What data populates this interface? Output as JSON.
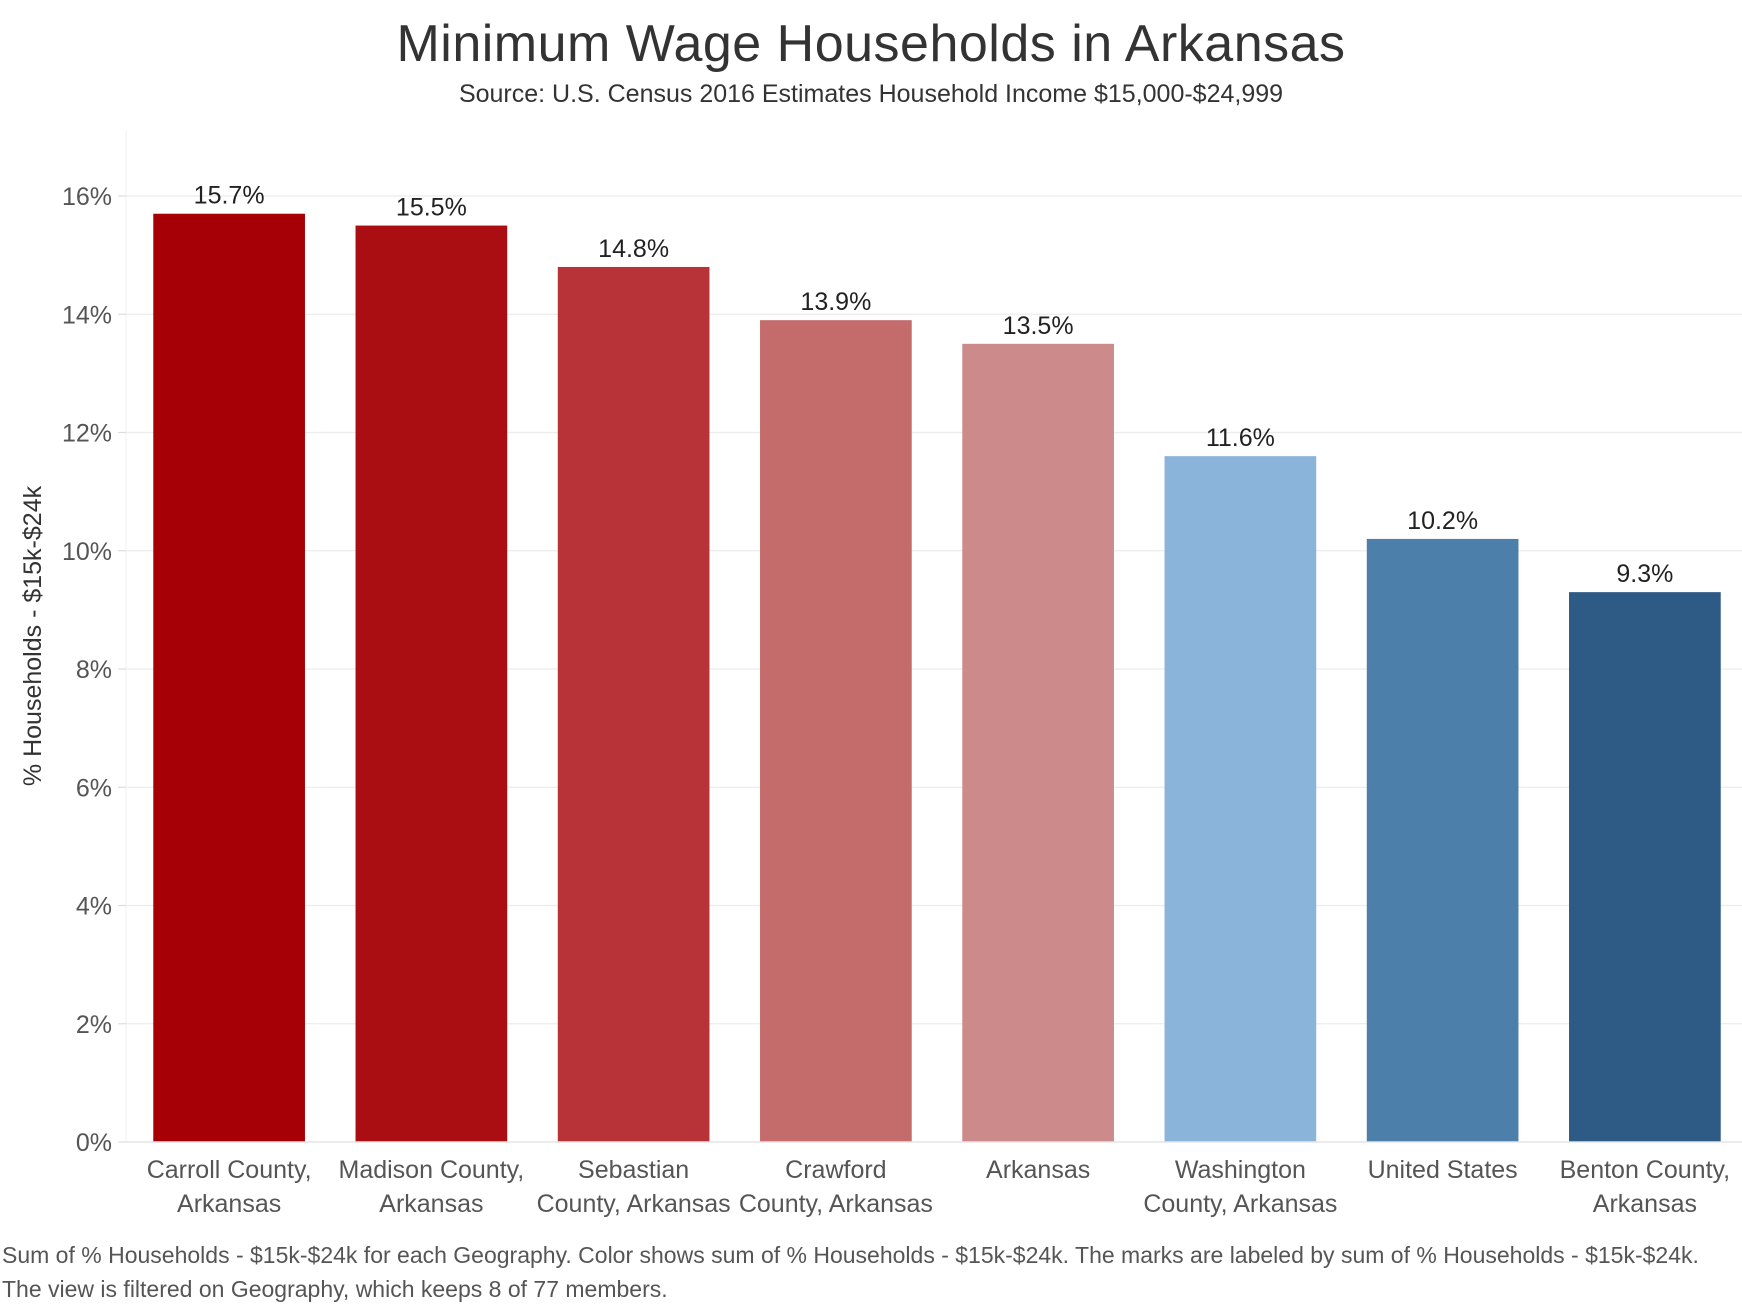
{
  "chart_data": {
    "type": "bar",
    "title": "Minimum Wage Households in Arkansas",
    "subtitle": "Source: U.S. Census 2016 Estimates Household Income $15,000-$24,999",
    "ylabel": "% Households - $15k-$24k",
    "xlabel": "",
    "ylim": [
      0,
      16.8
    ],
    "yticks": [
      0,
      2,
      4,
      6,
      8,
      10,
      12,
      14,
      16
    ],
    "ytick_labels": [
      "0%",
      "2%",
      "4%",
      "6%",
      "8%",
      "10%",
      "12%",
      "14%",
      "16%"
    ],
    "grid": true,
    "categories": [
      [
        "Carroll County,",
        "Arkansas"
      ],
      [
        "Madison County,",
        "Arkansas"
      ],
      [
        "Sebastian",
        "County, Arkansas"
      ],
      [
        "Crawford",
        "County, Arkansas"
      ],
      [
        "Arkansas"
      ],
      [
        "Washington",
        "County, Arkansas"
      ],
      [
        "United States"
      ],
      [
        "Benton County,",
        "Arkansas"
      ]
    ],
    "values": [
      15.7,
      15.5,
      14.8,
      13.9,
      13.5,
      11.6,
      10.2,
      9.3
    ],
    "value_labels": [
      "15.7%",
      "15.5%",
      "14.8%",
      "13.9%",
      "13.5%",
      "11.6%",
      "10.2%",
      "9.3%"
    ],
    "colors": [
      "#a60006",
      "#aa0d12",
      "#b83338",
      "#c46b6c",
      "#cc8a8b",
      "#8ab4d9",
      "#4d7fab",
      "#2e5a86"
    ]
  },
  "footnote": "Sum of % Households - $15k-$24k for each Geography.  Color shows sum of % Households - $15k-$24k.  The marks are labeled by sum of % Households - $15k-$24k. The view is filtered on Geography, which keeps 8 of 77 members."
}
